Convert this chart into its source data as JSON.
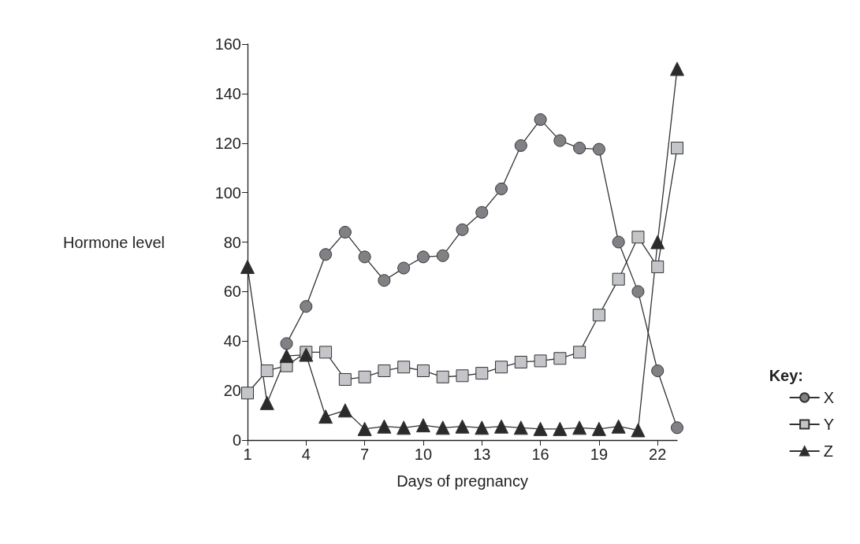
{
  "chart_data": {
    "type": "line",
    "xlabel": "Days of pregnancy",
    "ylabel": "Hormone level",
    "legend_title": "Key:",
    "x": [
      1,
      2,
      3,
      4,
      5,
      6,
      7,
      8,
      9,
      10,
      11,
      12,
      13,
      14,
      15,
      16,
      17,
      18,
      19,
      20,
      21,
      22,
      23
    ],
    "series": [
      {
        "name": "X",
        "color": "#808185",
        "marker": "circle",
        "x": [
          3,
          4,
          5,
          6,
          7,
          8,
          9,
          10,
          11,
          12,
          13,
          14,
          15,
          16,
          17,
          18,
          19,
          20,
          21,
          22,
          23
        ],
        "values": [
          39,
          54,
          75,
          84,
          74,
          64.5,
          69.5,
          74,
          74.5,
          85,
          92,
          101.5,
          119,
          129.5,
          121,
          118,
          117.5,
          80,
          60,
          28,
          5
        ]
      },
      {
        "name": "Y",
        "color": "#c4c5c8",
        "marker": "square",
        "values": [
          19,
          28,
          30,
          35.5,
          35.5,
          24.5,
          25.5,
          28,
          29.5,
          28,
          25.5,
          26,
          27,
          29.5,
          31.5,
          32,
          33,
          35.5,
          50.5,
          65,
          82,
          70,
          118
        ]
      },
      {
        "name": "Z",
        "color": "#2b2b2b",
        "marker": "triangle",
        "values": [
          70,
          15,
          34,
          34.5,
          9.5,
          12,
          4.5,
          5.5,
          5,
          6,
          5,
          5.5,
          5,
          5.5,
          5,
          4.5,
          4.5,
          5,
          4.5,
          5.5,
          4,
          80,
          150
        ]
      }
    ],
    "xlim": [
      1,
      23
    ],
    "xticks": [
      1,
      4,
      7,
      10,
      13,
      16,
      19,
      22
    ],
    "ylim": [
      0,
      160
    ],
    "yticks": [
      0,
      20,
      40,
      60,
      80,
      100,
      120,
      140,
      160
    ],
    "grid": false,
    "legend": "bottom right",
    "line_style": "solid"
  }
}
